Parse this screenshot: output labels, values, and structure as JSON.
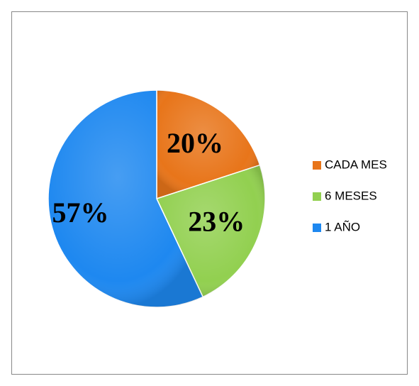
{
  "chart_data": {
    "type": "pie",
    "categories": [
      "CADA MES",
      "6 MESES",
      "1 AÑO"
    ],
    "values": [
      20,
      23,
      57
    ],
    "value_labels": [
      "20%",
      "23%",
      "57%"
    ],
    "colors": [
      "#e8751a",
      "#92d050",
      "#1e88f0"
    ],
    "legend": "right"
  }
}
